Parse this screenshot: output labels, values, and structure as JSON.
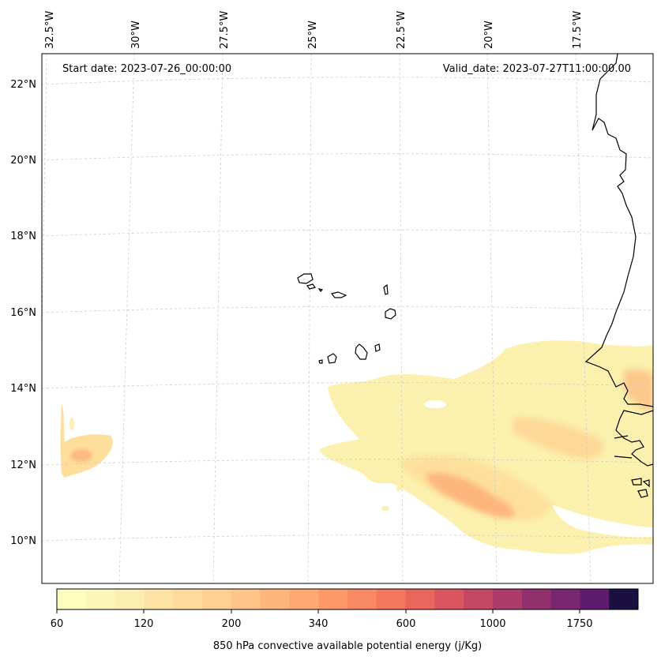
{
  "map": {
    "start_date": "Start date: 2023-07-26_00:00:00",
    "valid_date": "Valid_date: 2023-07-27T11:00:00.00",
    "lon_labels": [
      "32.5°W",
      "30°W",
      "27.5°W",
      "25°W",
      "22.5°W",
      "20°W",
      "17.5°W"
    ],
    "lat_labels": [
      "22°N",
      "20°N",
      "18°N",
      "16°N",
      "14°N",
      "12°N",
      "10°N"
    ]
  },
  "colorbar": {
    "tick_labels": [
      "60",
      "120",
      "200",
      "340",
      "600",
      "1000",
      "1750"
    ],
    "label": "850 hPa convective available potential energy (j/Kg)",
    "colors": [
      "#fcfdbf",
      "#fcf5b8",
      "#fcedb0",
      "#fde4a6",
      "#fedb9c",
      "#fed092",
      "#fec488",
      "#feb67d",
      "#fea873",
      "#fd9969",
      "#f98962",
      "#f3785d",
      "#e8665c",
      "#d9555f",
      "#c44764",
      "#ac3c6a",
      "#92306e",
      "#79276f",
      "#5f1c6e",
      "#1a1040"
    ]
  },
  "chart_data": {
    "type": "heatmap",
    "variable": "850 hPa convective available potential energy (j/Kg)",
    "colorbar_ticks": [
      60,
      120,
      200,
      340,
      600,
      1000,
      1750
    ],
    "lon_range_deg": [
      -33,
      -16
    ],
    "lat_range_deg": [
      9,
      23
    ],
    "grid": true
  }
}
